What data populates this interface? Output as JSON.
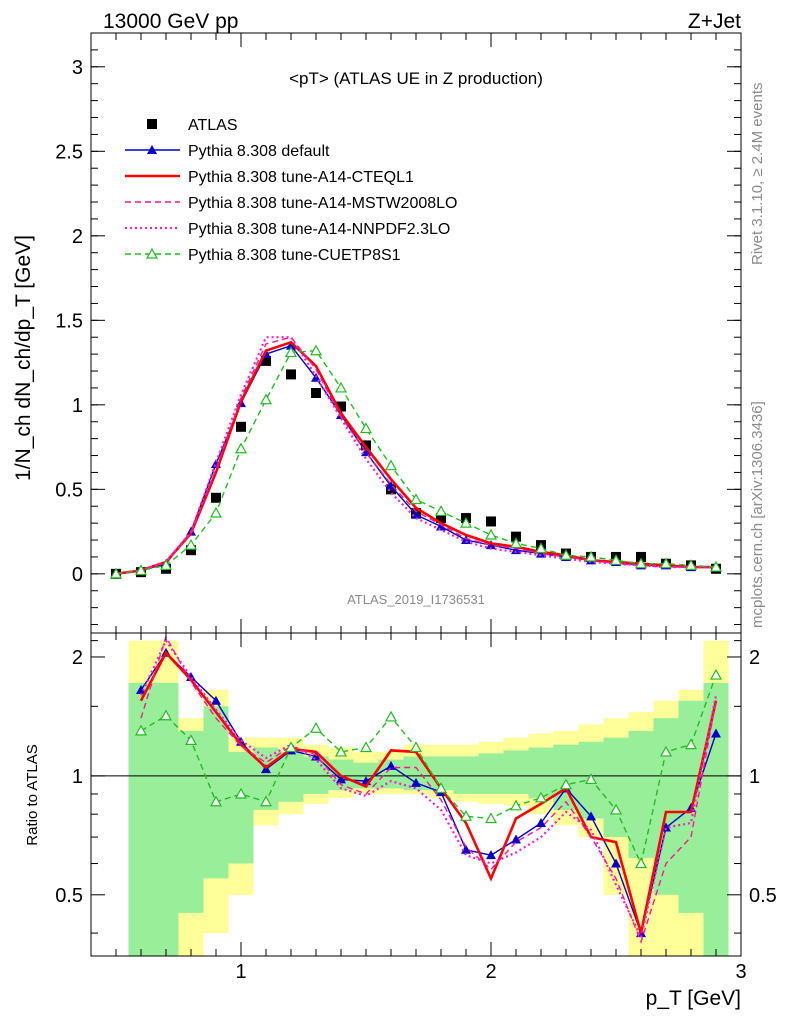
{
  "header": {
    "left": "13000 GeV pp",
    "right": "Z+Jet"
  },
  "side": {
    "top": "Rivet 3.1.10, ≥ 2.4M events",
    "bottom": "mcplots.cern.ch [arXiv:1306.3436]"
  },
  "watermark": "ATLAS_2019_I1736531",
  "chart_data": [
    {
      "type": "line",
      "title": "<pT> (ATLAS UE in Z production)",
      "xlabel": "p_T [GeV]",
      "ylabel": "1/N_ch dN_ch/dp_T [GeV]",
      "xlim": [
        0.4,
        3.0
      ],
      "ylim": [
        -0.35,
        3.2
      ],
      "yticks": [
        0,
        0.5,
        1,
        1.5,
        2,
        2.5,
        3
      ],
      "x": [
        0.5,
        0.6,
        0.7,
        0.8,
        0.9,
        1.0,
        1.1,
        1.2,
        1.3,
        1.4,
        1.5,
        1.6,
        1.7,
        1.8,
        1.9,
        2.0,
        2.1,
        2.2,
        2.3,
        2.4,
        2.5,
        2.6,
        2.7,
        2.8,
        2.9
      ],
      "series": [
        {
          "name": "ATLAS",
          "color": "#000000",
          "style": "marker-square",
          "values": [
            0.0,
            0.01,
            0.03,
            0.14,
            0.45,
            0.87,
            1.26,
            1.18,
            1.07,
            0.99,
            0.76,
            0.5,
            0.36,
            0.33,
            0.33,
            0.31,
            0.22,
            0.17,
            0.12,
            0.1,
            0.1,
            0.1,
            0.06,
            0.05,
            0.03
          ]
        },
        {
          "name": "Pythia 8.308 default",
          "color": "#0000cc",
          "style": "solid-triangle",
          "values": [
            0.0,
            0.02,
            0.06,
            0.25,
            0.65,
            1.01,
            1.3,
            1.35,
            1.16,
            0.94,
            0.72,
            0.52,
            0.35,
            0.28,
            0.2,
            0.17,
            0.14,
            0.12,
            0.1,
            0.08,
            0.07,
            0.05,
            0.05,
            0.04,
            0.04
          ]
        },
        {
          "name": "Pythia 8.308 tune-A14-CTEQL1",
          "color": "#ff0000",
          "style": "solid-thick",
          "values": [
            0.0,
            0.02,
            0.07,
            0.24,
            0.6,
            1.02,
            1.32,
            1.37,
            1.23,
            0.95,
            0.75,
            0.56,
            0.39,
            0.3,
            0.23,
            0.18,
            0.16,
            0.13,
            0.11,
            0.08,
            0.07,
            0.06,
            0.05,
            0.04,
            0.04
          ]
        },
        {
          "name": "Pythia 8.308 tune-A14-MSTW2008LO",
          "color": "#ff1493",
          "style": "dashed",
          "values": [
            0.0,
            0.02,
            0.07,
            0.24,
            0.62,
            1.04,
            1.36,
            1.4,
            1.21,
            0.93,
            0.72,
            0.53,
            0.37,
            0.29,
            0.21,
            0.17,
            0.15,
            0.12,
            0.1,
            0.08,
            0.06,
            0.05,
            0.04,
            0.04,
            0.04
          ]
        },
        {
          "name": "Pythia 8.308 tune-A14-NNPDF2.3LO",
          "color": "#ee22cc",
          "style": "dotted",
          "values": [
            0.0,
            0.02,
            0.07,
            0.25,
            0.66,
            1.06,
            1.4,
            1.4,
            1.17,
            0.92,
            0.68,
            0.48,
            0.33,
            0.26,
            0.19,
            0.15,
            0.13,
            0.11,
            0.09,
            0.07,
            0.06,
            0.05,
            0.04,
            0.04,
            0.04
          ]
        },
        {
          "name": "Pythia 8.308 tune-CUETP8S1",
          "color": "#22bb22",
          "style": "dashed-open-triangle",
          "values": [
            0.0,
            0.02,
            0.05,
            0.17,
            0.36,
            0.74,
            1.03,
            1.31,
            1.32,
            1.1,
            0.86,
            0.64,
            0.44,
            0.37,
            0.3,
            0.23,
            0.18,
            0.15,
            0.11,
            0.1,
            0.08,
            0.06,
            0.06,
            0.05,
            0.04
          ]
        }
      ]
    },
    {
      "type": "line",
      "ylabel": "Ratio to ATLAS",
      "xlabel": "p_T [GeV]",
      "xlim": [
        0.4,
        3.0
      ],
      "ylim": [
        0.35,
        2.3
      ],
      "yticks": [
        0.5,
        1,
        2
      ],
      "xticks": [
        1,
        2,
        3
      ],
      "band_edges": [
        0.55,
        0.65,
        0.75,
        0.85,
        0.95,
        1.05,
        1.15,
        1.25,
        1.35,
        1.45,
        1.55,
        1.65,
        1.75,
        1.85,
        1.95,
        2.05,
        2.15,
        2.25,
        2.35,
        2.45,
        2.55,
        2.65,
        2.75,
        2.85,
        2.95
      ],
      "band_yellow": [
        [
          0.35,
          2.2
        ],
        [
          0.35,
          2.2
        ],
        [
          0.35,
          1.4
        ],
        [
          0.4,
          1.65
        ],
        [
          0.5,
          1.25
        ],
        [
          0.75,
          1.25
        ],
        [
          0.8,
          1.25
        ],
        [
          0.85,
          1.2
        ],
        [
          0.88,
          1.18
        ],
        [
          0.9,
          1.15
        ],
        [
          0.9,
          1.15
        ],
        [
          0.9,
          1.2
        ],
        [
          0.88,
          1.2
        ],
        [
          0.86,
          1.2
        ],
        [
          0.85,
          1.22
        ],
        [
          0.84,
          1.25
        ],
        [
          0.8,
          1.28
        ],
        [
          0.75,
          1.3
        ],
        [
          0.7,
          1.35
        ],
        [
          0.5,
          1.4
        ],
        [
          0.35,
          1.45
        ],
        [
          0.35,
          1.55
        ],
        [
          0.35,
          1.65
        ],
        [
          0.35,
          2.2
        ]
      ],
      "band_green": [
        [
          0.35,
          1.72
        ],
        [
          0.35,
          1.72
        ],
        [
          0.45,
          1.3
        ],
        [
          0.55,
          1.5
        ],
        [
          0.6,
          1.15
        ],
        [
          0.82,
          1.18
        ],
        [
          0.86,
          1.15
        ],
        [
          0.9,
          1.12
        ],
        [
          0.92,
          1.1
        ],
        [
          0.93,
          1.08
        ],
        [
          0.93,
          1.1
        ],
        [
          0.92,
          1.12
        ],
        [
          0.92,
          1.12
        ],
        [
          0.9,
          1.12
        ],
        [
          0.9,
          1.14
        ],
        [
          0.9,
          1.16
        ],
        [
          0.88,
          1.18
        ],
        [
          0.82,
          1.2
        ],
        [
          0.78,
          1.22
        ],
        [
          0.7,
          1.25
        ],
        [
          0.62,
          1.3
        ],
        [
          0.5,
          1.4
        ],
        [
          0.45,
          1.55
        ],
        [
          0.35,
          1.72
        ]
      ],
      "x": [
        0.6,
        0.7,
        0.8,
        0.9,
        1.0,
        1.1,
        1.2,
        1.3,
        1.4,
        1.5,
        1.6,
        1.7,
        1.8,
        1.9,
        2.0,
        2.1,
        2.2,
        2.3,
        2.4,
        2.5,
        2.6,
        2.7,
        2.8,
        2.9
      ],
      "series": [
        {
          "name": "Pythia 8.308 default",
          "color": "#0000cc",
          "style": "solid-triangle",
          "values": [
            1.65,
            2.05,
            1.78,
            1.55,
            1.22,
            1.04,
            1.16,
            1.12,
            0.98,
            0.97,
            1.06,
            0.96,
            0.91,
            0.65,
            0.63,
            0.69,
            0.76,
            0.93,
            0.79,
            0.6,
            0.4,
            0.74,
            0.83,
            1.28
          ]
        },
        {
          "name": "Pythia 8.308 tune-A14-CTEQL1",
          "color": "#ff0000",
          "style": "solid-thick",
          "values": [
            1.55,
            2.05,
            1.75,
            1.45,
            1.2,
            1.05,
            1.17,
            1.15,
            1.0,
            0.94,
            1.16,
            1.15,
            0.93,
            0.76,
            0.55,
            0.78,
            0.85,
            0.93,
            0.7,
            0.68,
            0.4,
            0.81,
            0.81,
            1.55
          ]
        },
        {
          "name": "Pythia 8.308 tune-A14-MSTW2008LO",
          "color": "#ff1493",
          "style": "dashed",
          "values": [
            1.4,
            2.25,
            1.73,
            1.4,
            1.19,
            1.08,
            1.19,
            1.13,
            0.95,
            0.9,
            1.05,
            1.05,
            0.87,
            0.66,
            0.58,
            0.68,
            0.74,
            0.86,
            0.7,
            0.55,
            0.38,
            0.6,
            0.7,
            1.55
          ]
        },
        {
          "name": "Pythia 8.308 tune-A14-NNPDF2.3LO",
          "color": "#ee22cc",
          "style": "dotted",
          "values": [
            1.6,
            2.2,
            1.78,
            1.47,
            1.23,
            1.11,
            1.2,
            1.1,
            0.93,
            0.89,
            0.97,
            0.93,
            0.82,
            0.63,
            0.6,
            0.64,
            0.7,
            0.81,
            0.73,
            0.53,
            0.39,
            0.74,
            0.76,
            1.6
          ]
        },
        {
          "name": "Pythia 8.308 tune-CUETP8S1",
          "color": "#22bb22",
          "style": "dashed-open-triangle",
          "values": [
            1.3,
            1.42,
            1.23,
            0.86,
            0.9,
            0.86,
            1.18,
            1.32,
            1.15,
            1.18,
            1.41,
            1.18,
            0.93,
            0.79,
            0.78,
            0.84,
            0.88,
            0.95,
            0.98,
            0.82,
            0.6,
            1.15,
            1.2,
            1.8
          ]
        }
      ]
    }
  ]
}
